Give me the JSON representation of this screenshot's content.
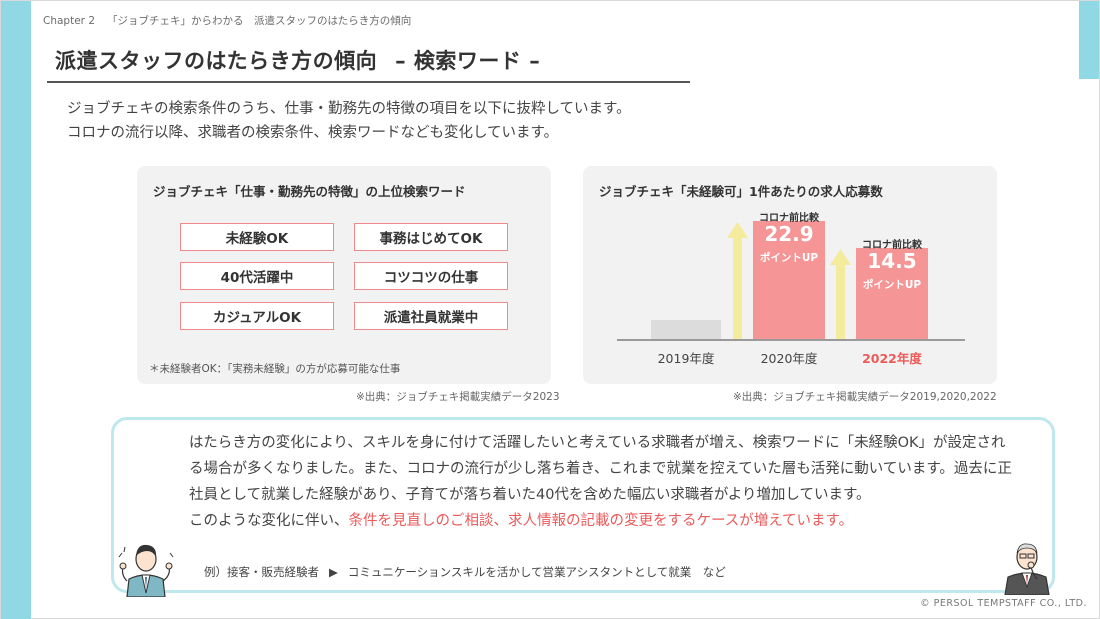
{
  "header": {
    "chapter_number": "Chapter 2",
    "chapter_title": "「ジョブチェキ」からわかる　派遣スタッフのはたらき方の傾向"
  },
  "title": {
    "main": "派遣スタッフのはたらき方の傾向",
    "sub": "– 検索ワード –"
  },
  "intro": {
    "line1": "ジョブチェキの検索条件のうち、仕事・勤務先の特徴の項目を以下に抜粋しています。",
    "line2": "コロナの流行以降、求職者の検索条件、検索ワードなども変化しています。"
  },
  "keywords_panel": {
    "title": "ジョブチェキ「仕事・勤務先の特徴」の上位検索ワード",
    "keywords": [
      "未経験OK",
      "事務はじめてOK",
      "40代活躍中",
      "コツコツの仕事",
      "カジュアルOK",
      "派遣社員就業中"
    ],
    "note": "＊未経験者OK：「実務未経験」の方が応募可能な仕事",
    "source": "※出典：ジョブチェキ掲載実績データ2023"
  },
  "chart_panel": {
    "title": "ジョブチェキ「未経験可」1件あたりの求人応募数",
    "source": "※出典：ジョブチェキ掲載実績データ2019,2020,2022"
  },
  "chart_data": {
    "type": "bar",
    "title": "ジョブチェキ「未経験可」1件あたりの求人応募数",
    "categories": [
      "2019年度",
      "2020年度",
      "2022年度"
    ],
    "highlighted_category": "2022年度",
    "annotations": [
      {
        "category": "2020年度",
        "label": "コロナ前比較",
        "value": "22.9",
        "unit": "ポイントUP"
      },
      {
        "category": "2022年度",
        "label": "コロナ前比較",
        "value": "14.5",
        "unit": "ポイントUP"
      }
    ],
    "legend": "none",
    "grid": false,
    "colors": {
      "baseline_bar": "#dcdcdc",
      "highlight_bar": "#f59595",
      "arrow": "#f5eb9c",
      "highlight_text": "#ec5a5a"
    }
  },
  "callout": {
    "text_main": "はたらき方の変化により、スキルを身に付けて活躍したいと考えている求職者が増え、検索ワードに「未経験OK」が設定される場合が多くなりました。また、コロナの流行が少し落ち着き、これまで就業を控えていた層も活発に動いています。過去に正社員として就業した経験があり、子育てが落ち着いた40代を含めた幅広い求職者がより増加しています。",
    "text_lead": "このような変化に伴い、",
    "text_highlight": "条件を見直しのご相談、求人情報の記載の変更をするケースが増えています。",
    "example_label": "例）接客・販売経験者",
    "example_arrow": "▶",
    "example_text": "コミュニケーションスキルを活かして営業アシスタントとして就業　など"
  },
  "icons": [
    "young-man-illustration",
    "elderly-man-illustration"
  ],
  "footer": {
    "copyright": "© PERSOL TEMPSTAFF CO., LTD."
  },
  "colors": {
    "accent_cyan": "#8fd8e4",
    "callout_border": "#bfe7ee",
    "keyword_border": "#f08a8a",
    "highlight_red": "#ec5a5a"
  }
}
